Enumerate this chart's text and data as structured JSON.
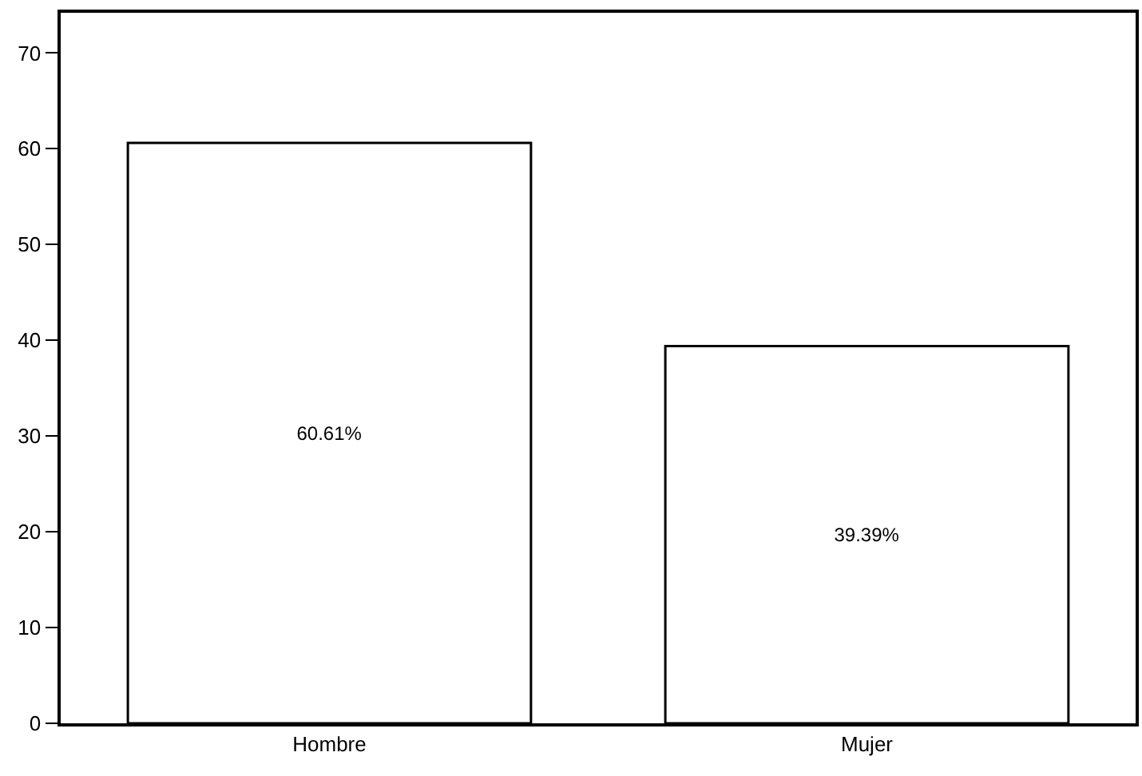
{
  "chart_data": {
    "type": "bar",
    "categories": [
      "Hombre",
      "Mujer"
    ],
    "values": [
      60.61,
      39.39
    ],
    "value_labels": [
      "60.61%",
      "39.39%"
    ],
    "color": "#ffffff",
    "ylim": [
      0,
      74.2
    ],
    "yticks": [
      0,
      10,
      20,
      30,
      40,
      50,
      60,
      70
    ]
  }
}
